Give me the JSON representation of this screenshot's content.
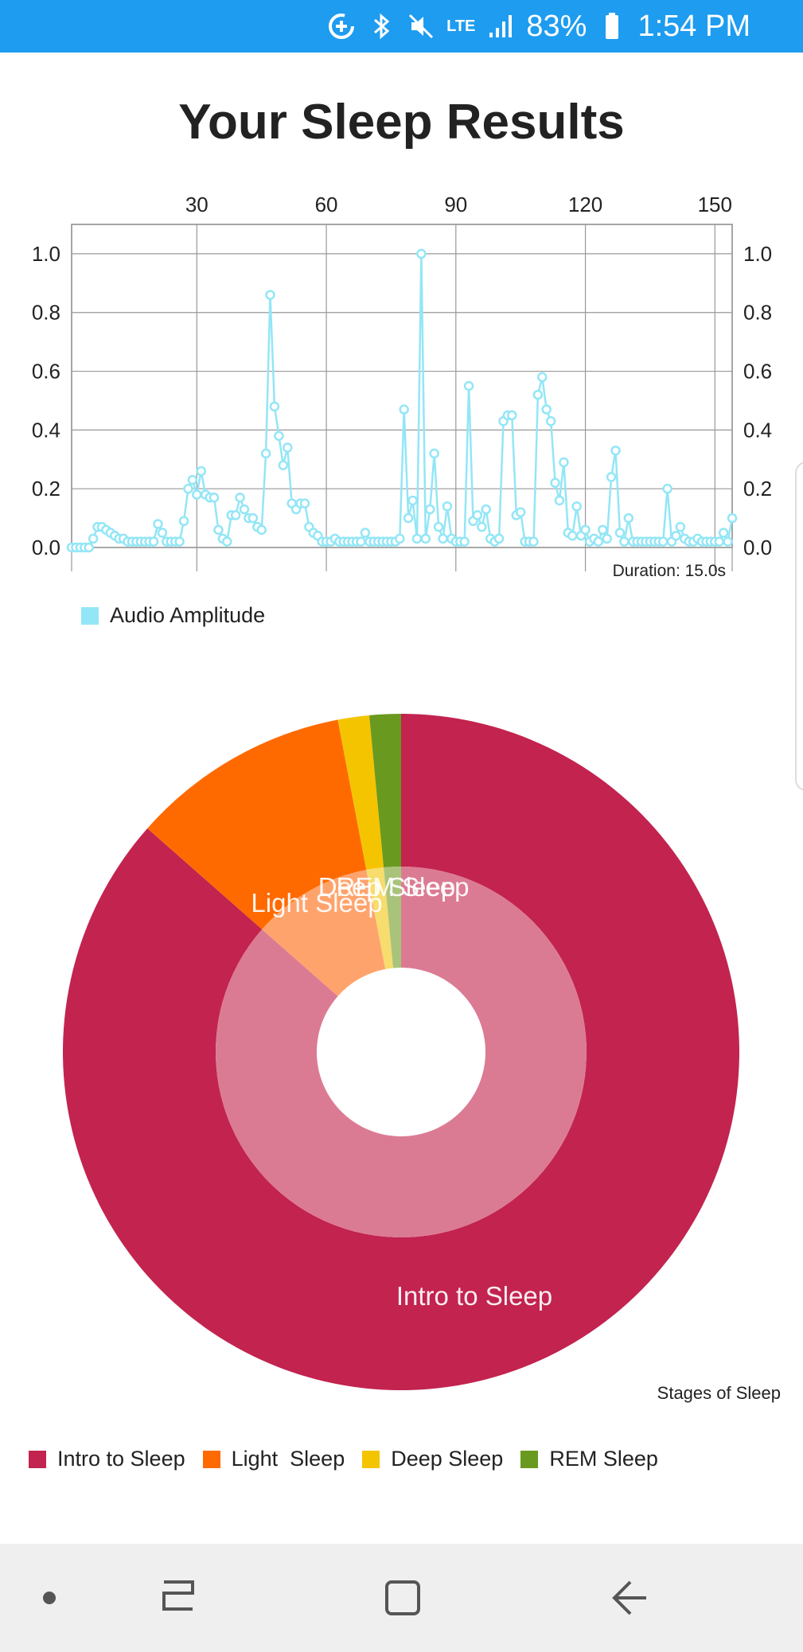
{
  "status_bar": {
    "battery": "83%",
    "time": "1:54 PM",
    "network": "LTE",
    "background_color": "#1e9cf0"
  },
  "page": {
    "title": "Your Sleep Results"
  },
  "chart_data": [
    {
      "type": "line",
      "title": "",
      "xlabel": "",
      "ylabel": "",
      "x_ticks": [
        "30",
        "60",
        "90",
        "120",
        "150"
      ],
      "x_tick_values": [
        30,
        60,
        90,
        120,
        150
      ],
      "xlim": [
        1,
        154
      ],
      "y_ticks": [
        "0.0",
        "0.2",
        "0.4",
        "0.6",
        "0.8",
        "1.0"
      ],
      "ylim": [
        0,
        1.1
      ],
      "grid": true,
      "annotation": "Duration: 15.0s",
      "series": [
        {
          "name": "Audio Amplitude",
          "color": "#93e6f6",
          "x": [
            1,
            2,
            3,
            4,
            5,
            6,
            7,
            8,
            9,
            10,
            11,
            12,
            13,
            14,
            15,
            16,
            17,
            18,
            19,
            20,
            21,
            22,
            23,
            24,
            25,
            26,
            27,
            28,
            29,
            30,
            31,
            32,
            33,
            34,
            35,
            36,
            37,
            38,
            39,
            40,
            41,
            42,
            43,
            44,
            45,
            46,
            47,
            48,
            49,
            50,
            51,
            52,
            53,
            54,
            55,
            56,
            57,
            58,
            59,
            60,
            61,
            62,
            63,
            64,
            65,
            66,
            67,
            68,
            69,
            70,
            71,
            72,
            73,
            74,
            75,
            76,
            77,
            78,
            79,
            80,
            81,
            82,
            83,
            84,
            85,
            86,
            87,
            88,
            89,
            90,
            91,
            92,
            93,
            94,
            95,
            96,
            97,
            98,
            99,
            100,
            101,
            102,
            103,
            104,
            105,
            106,
            107,
            108,
            109,
            110,
            111,
            112,
            113,
            114,
            115,
            116,
            117,
            118,
            119,
            120,
            121,
            122,
            123,
            124,
            125,
            126,
            127,
            128,
            129,
            130,
            131,
            132,
            133,
            134,
            135,
            136,
            137,
            138,
            139,
            140,
            141,
            142,
            143,
            144,
            145,
            146,
            147,
            148,
            149,
            150,
            151,
            152,
            153,
            154
          ],
          "y": [
            0.0,
            0.0,
            0.0,
            0.0,
            0.0,
            0.03,
            0.07,
            0.07,
            0.06,
            0.05,
            0.04,
            0.03,
            0.03,
            0.02,
            0.02,
            0.02,
            0.02,
            0.02,
            0.02,
            0.02,
            0.08,
            0.05,
            0.02,
            0.02,
            0.02,
            0.02,
            0.09,
            0.2,
            0.23,
            0.18,
            0.26,
            0.18,
            0.17,
            0.17,
            0.06,
            0.03,
            0.02,
            0.11,
            0.11,
            0.17,
            0.13,
            0.1,
            0.1,
            0.07,
            0.06,
            0.32,
            0.86,
            0.48,
            0.38,
            0.28,
            0.34,
            0.15,
            0.13,
            0.15,
            0.15,
            0.07,
            0.05,
            0.04,
            0.02,
            0.02,
            0.02,
            0.03,
            0.02,
            0.02,
            0.02,
            0.02,
            0.02,
            0.02,
            0.05,
            0.02,
            0.02,
            0.02,
            0.02,
            0.02,
            0.02,
            0.02,
            0.03,
            0.47,
            0.1,
            0.16,
            0.03,
            1.0,
            0.03,
            0.13,
            0.32,
            0.07,
            0.03,
            0.14,
            0.03,
            0.02,
            0.02,
            0.02,
            0.55,
            0.09,
            0.11,
            0.07,
            0.13,
            0.03,
            0.02,
            0.03,
            0.43,
            0.45,
            0.45,
            0.11,
            0.12,
            0.02,
            0.02,
            0.02,
            0.52,
            0.58,
            0.47,
            0.43,
            0.22,
            0.16,
            0.29,
            0.05,
            0.04,
            0.14,
            0.04,
            0.06,
            0.02,
            0.03,
            0.02,
            0.06,
            0.03,
            0.24,
            0.33,
            0.05,
            0.02,
            0.1,
            0.02,
            0.02,
            0.02,
            0.02,
            0.02,
            0.02,
            0.02,
            0.02,
            0.2,
            0.02,
            0.04,
            0.07,
            0.03,
            0.02,
            0.02,
            0.03,
            0.02,
            0.02,
            0.02,
            0.02,
            0.02,
            0.05,
            0.02,
            0.1
          ]
        }
      ]
    },
    {
      "type": "pie",
      "title": "",
      "annotation": "Stages of Sleep",
      "categories": [
        "Intro to Sleep",
        "Light  Sleep",
        "Deep Sleep",
        "REM Sleep"
      ],
      "values": [
        86.5,
        10.5,
        1.5,
        1.5
      ],
      "colors": [
        "#c2234f",
        "#ff6a00",
        "#f5c400",
        "#6a991f"
      ],
      "inner_ring_colors": [
        "#db7b93",
        "#ffa36d",
        "#f7dc6e",
        "#a9c47a"
      ],
      "slice_labels": [
        "Intro to Sleep",
        "Light  Sleep",
        "Deep Sleep",
        "REM Sleep"
      ]
    }
  ],
  "line_legend": {
    "label": "Audio Amplitude"
  },
  "nav_bar": {
    "buttons": [
      "recent-apps",
      "home",
      "back"
    ]
  }
}
